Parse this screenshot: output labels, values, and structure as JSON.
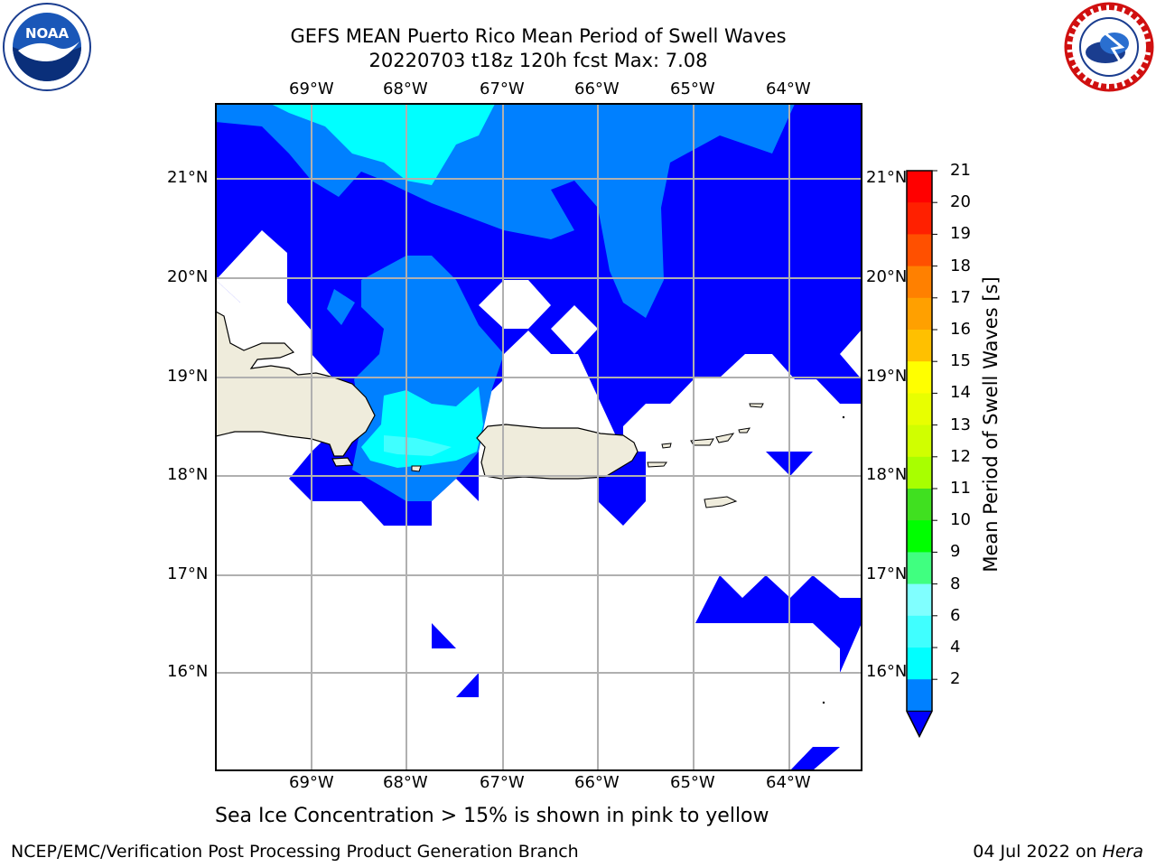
{
  "title": {
    "line1": "GEFS MEAN Puerto Rico Mean Period of Swell Waves",
    "line2": "20220703 t18z 120h fcst   Max: 7.08"
  },
  "map": {
    "lon_labels": [
      "69°W",
      "68°W",
      "67°W",
      "66°W",
      "65°W",
      "64°W"
    ],
    "lat_labels": [
      "21°N",
      "20°N",
      "19°N",
      "18°N",
      "17°N",
      "16°N"
    ],
    "colors": {
      "land": "#efecdc",
      "value_below_2": "#0000ff",
      "value_2_4": "#0080ff",
      "value_4_6": "#00ffff",
      "value_6_8": "#40ffff"
    }
  },
  "colorbar": {
    "label": "Mean Period of Swell Waves [s]",
    "ticks": [
      "21",
      "20",
      "19",
      "18",
      "17",
      "16",
      "15",
      "14",
      "13",
      "12",
      "11",
      "10",
      "9",
      "8",
      "6",
      "4",
      "2"
    ],
    "colors": [
      "#ff0000",
      "#ff2000",
      "#ff5000",
      "#ff8000",
      "#ffa000",
      "#ffc000",
      "#ffff00",
      "#e8ff00",
      "#d0ff00",
      "#a8ff00",
      "#40e020",
      "#00ff00",
      "#40ff80",
      "#80ffff",
      "#40ffff",
      "#00ffff",
      "#0080ff"
    ],
    "extend_color": "#0000ff"
  },
  "footer": {
    "note": "Sea Ice Concentration > 15% is shown in pink to yellow",
    "credit": "NCEP/EMC/Verification Post Processing Product Generation Branch",
    "date_prefix": "04 Jul 2022 on ",
    "date_machine": "Hera"
  }
}
